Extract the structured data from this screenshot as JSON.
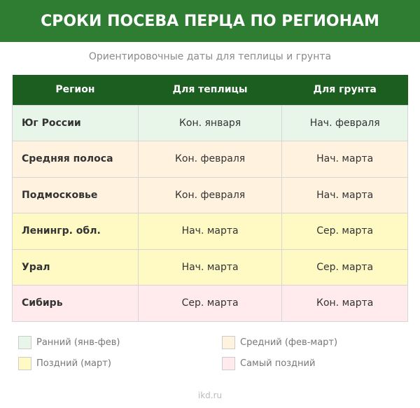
{
  "title": "СРОКИ ПОСЕВА ПЕРЦА ПО РЕГИОНАМ",
  "subtitle": "Ориентировочные даты для теплицы и грунта",
  "table": {
    "headers": [
      "Регион",
      "Для теплицы",
      "Для грунта"
    ],
    "rows": [
      {
        "region": "Юг России",
        "greenhouse": "Кон. января",
        "ground": "Нач. февраля",
        "color": "#e8f5e9"
      },
      {
        "region": "Средняя полоса",
        "greenhouse": "Кон. февраля",
        "ground": "Нач. марта",
        "color": "#fff3e0"
      },
      {
        "region": "Подмосковье",
        "greenhouse": "Кон. февраля",
        "ground": "Нач. марта",
        "color": "#fff3e0"
      },
      {
        "region": "Ленингр. обл.",
        "greenhouse": "Нач. марта",
        "ground": "Сер. марта",
        "color": "#fff9c4"
      },
      {
        "region": "Урал",
        "greenhouse": "Нач. марта",
        "ground": "Сер. марта",
        "color": "#fff9c4"
      },
      {
        "region": "Сибирь",
        "greenhouse": "Сер. марта",
        "ground": "Кон. марта",
        "color": "#ffebee"
      }
    ]
  },
  "legend": [
    {
      "label": "Ранний (янв-фев)",
      "color": "#e8f5e9"
    },
    {
      "label": "Средний (фев-март)",
      "color": "#fff3e0"
    },
    {
      "label": "Поздний (март)",
      "color": "#fff9c4"
    },
    {
      "label": "Самый поздний",
      "color": "#ffebee"
    }
  ],
  "footer": "ikd.ru"
}
